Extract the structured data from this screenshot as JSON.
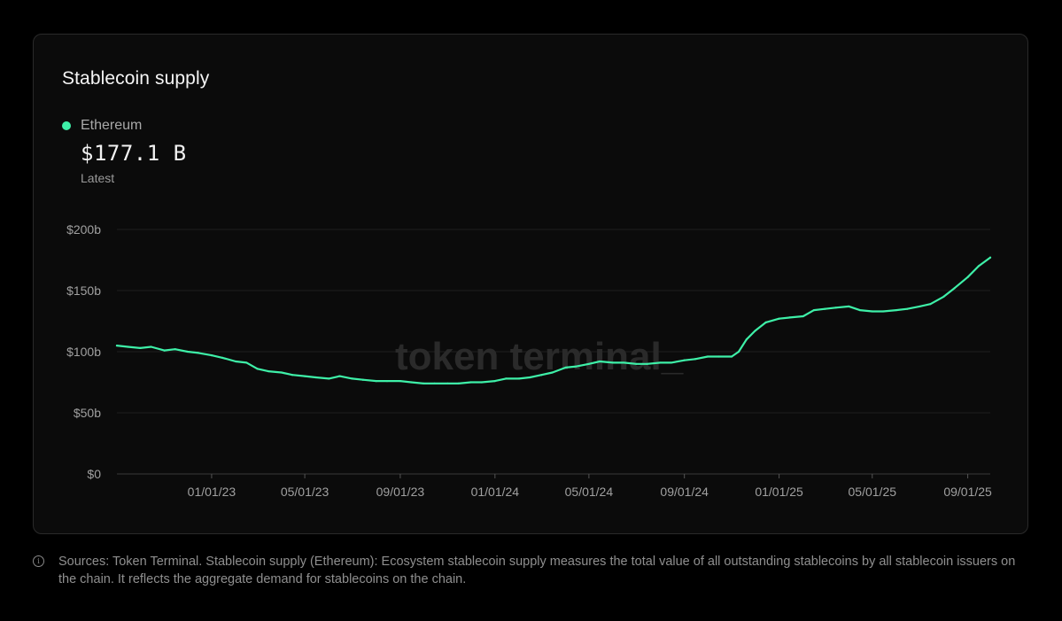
{
  "card": {
    "title": "Stablecoin supply",
    "legend": {
      "name": "Ethereum",
      "color": "#3ef0a8"
    },
    "latest": {
      "value": "$177.1 B",
      "label": "Latest"
    },
    "watermark": "token terminal_"
  },
  "chart_data": {
    "type": "line",
    "title": "Stablecoin supply",
    "xlabel": "",
    "ylabel": "",
    "ylim": [
      0,
      200
    ],
    "xlim": [
      "2022-09-01",
      "2025-09-30"
    ],
    "y_ticks": [
      {
        "value": 0,
        "label": "$0"
      },
      {
        "value": 50,
        "label": "$50b"
      },
      {
        "value": 100,
        "label": "$100b"
      },
      {
        "value": 150,
        "label": "$150b"
      },
      {
        "value": 200,
        "label": "$200b"
      }
    ],
    "x_ticks": [
      {
        "date": "2023-01-01",
        "label": "01/01/23"
      },
      {
        "date": "2023-05-01",
        "label": "05/01/23"
      },
      {
        "date": "2023-09-01",
        "label": "09/01/23"
      },
      {
        "date": "2024-01-01",
        "label": "01/01/24"
      },
      {
        "date": "2024-05-01",
        "label": "05/01/24"
      },
      {
        "date": "2024-09-01",
        "label": "09/01/24"
      },
      {
        "date": "2025-01-01",
        "label": "01/01/25"
      },
      {
        "date": "2025-05-01",
        "label": "05/01/25"
      },
      {
        "date": "2025-09-01",
        "label": "09/01/25"
      }
    ],
    "grid": "horizontal",
    "series": [
      {
        "name": "Ethereum",
        "color": "#3ef0a8",
        "points": [
          [
            "2022-09-01",
            105
          ],
          [
            "2022-09-15",
            104
          ],
          [
            "2022-10-01",
            103
          ],
          [
            "2022-10-15",
            104
          ],
          [
            "2022-11-01",
            101
          ],
          [
            "2022-11-15",
            102
          ],
          [
            "2022-12-01",
            100
          ],
          [
            "2022-12-15",
            99
          ],
          [
            "2023-01-01",
            97
          ],
          [
            "2023-01-15",
            95
          ],
          [
            "2023-02-01",
            92
          ],
          [
            "2023-02-15",
            91
          ],
          [
            "2023-03-01",
            86
          ],
          [
            "2023-03-15",
            84
          ],
          [
            "2023-04-01",
            83
          ],
          [
            "2023-04-15",
            81
          ],
          [
            "2023-05-01",
            80
          ],
          [
            "2023-05-15",
            79
          ],
          [
            "2023-06-01",
            78
          ],
          [
            "2023-06-15",
            80
          ],
          [
            "2023-07-01",
            78
          ],
          [
            "2023-07-15",
            77
          ],
          [
            "2023-08-01",
            76
          ],
          [
            "2023-08-15",
            76
          ],
          [
            "2023-09-01",
            76
          ],
          [
            "2023-09-15",
            75
          ],
          [
            "2023-10-01",
            74
          ],
          [
            "2023-10-15",
            74
          ],
          [
            "2023-11-01",
            74
          ],
          [
            "2023-11-15",
            74
          ],
          [
            "2023-12-01",
            75
          ],
          [
            "2023-12-15",
            75
          ],
          [
            "2024-01-01",
            76
          ],
          [
            "2024-01-15",
            78
          ],
          [
            "2024-02-01",
            78
          ],
          [
            "2024-02-15",
            79
          ],
          [
            "2024-03-01",
            81
          ],
          [
            "2024-03-15",
            83
          ],
          [
            "2024-04-01",
            87
          ],
          [
            "2024-04-15",
            88
          ],
          [
            "2024-05-01",
            90
          ],
          [
            "2024-05-15",
            92
          ],
          [
            "2024-06-01",
            91
          ],
          [
            "2024-06-15",
            91
          ],
          [
            "2024-07-01",
            90
          ],
          [
            "2024-07-15",
            90
          ],
          [
            "2024-08-01",
            91
          ],
          [
            "2024-08-15",
            91
          ],
          [
            "2024-09-01",
            93
          ],
          [
            "2024-09-15",
            94
          ],
          [
            "2024-10-01",
            96
          ],
          [
            "2024-10-15",
            96
          ],
          [
            "2024-11-01",
            96
          ],
          [
            "2024-11-10",
            100
          ],
          [
            "2024-11-20",
            110
          ],
          [
            "2024-12-01",
            117
          ],
          [
            "2024-12-15",
            124
          ],
          [
            "2025-01-01",
            127
          ],
          [
            "2025-01-15",
            128
          ],
          [
            "2025-02-01",
            129
          ],
          [
            "2025-02-15",
            134
          ],
          [
            "2025-03-01",
            135
          ],
          [
            "2025-03-15",
            136
          ],
          [
            "2025-04-01",
            137
          ],
          [
            "2025-04-15",
            134
          ],
          [
            "2025-05-01",
            133
          ],
          [
            "2025-05-15",
            133
          ],
          [
            "2025-06-01",
            134
          ],
          [
            "2025-06-15",
            135
          ],
          [
            "2025-07-01",
            137
          ],
          [
            "2025-07-15",
            139
          ],
          [
            "2025-08-01",
            145
          ],
          [
            "2025-08-15",
            152
          ],
          [
            "2025-09-01",
            161
          ],
          [
            "2025-09-15",
            170
          ],
          [
            "2025-09-30",
            177
          ]
        ]
      }
    ]
  },
  "footnote": {
    "text": "Sources: Token Terminal. Stablecoin supply (Ethereum): Ecosystem stablecoin supply measures the total value of all outstanding stablecoins by all stablecoin issuers on the chain. It reflects the aggregate demand for stablecoins on the chain."
  }
}
